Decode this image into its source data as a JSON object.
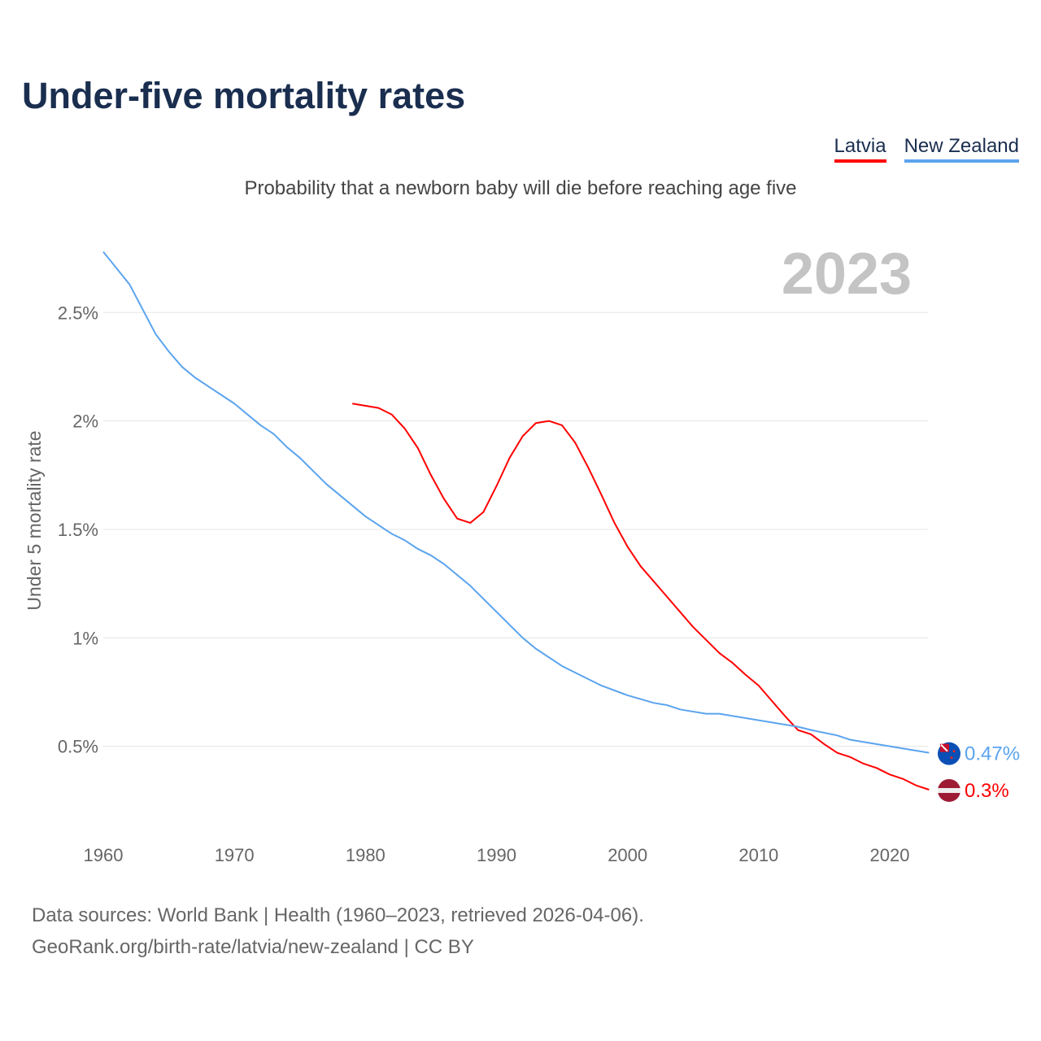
{
  "chart_data": {
    "type": "line",
    "title": "Under-five mortality rates",
    "subtitle": "Probability that a newborn baby will die before reaching age five",
    "ylabel": "Under 5 mortality rate",
    "xlabel": "",
    "year_label": "2023",
    "xlim": [
      1960,
      2023
    ],
    "ylim": [
      0,
      2.8
    ],
    "grid": true,
    "legend_position": "top-right",
    "x_ticks": [
      1960,
      1970,
      1980,
      1990,
      2000,
      2010,
      2020
    ],
    "x_tick_labels": [
      "1960",
      "1970",
      "1980",
      "1990",
      "2000",
      "2010",
      "2020"
    ],
    "y_ticks": [
      0.5,
      1,
      1.5,
      2,
      2.5
    ],
    "y_tick_labels": [
      "0.5%",
      "1%",
      "1.5%",
      "2%",
      "2.5%"
    ],
    "series": [
      {
        "name": "Latvia",
        "color": "#ff0000",
        "end_label": "0.3%",
        "x": [
          1979,
          1981,
          1982,
          1983,
          1984,
          1985,
          1986,
          1987,
          1988,
          1989,
          1990,
          1991,
          1992,
          1993,
          1994,
          1995,
          1996,
          1997,
          1998,
          1999,
          2000,
          2001,
          2002,
          2003,
          2004,
          2005,
          2006,
          2007,
          2008,
          2009,
          2010,
          2011,
          2012,
          2013,
          2014,
          2015,
          2016,
          2017,
          2018,
          2019,
          2020,
          2021,
          2022,
          2023
        ],
        "values": [
          2.08,
          2.06,
          2.03,
          1.965,
          1.875,
          1.75,
          1.64,
          1.55,
          1.53,
          1.58,
          1.7,
          1.83,
          1.93,
          1.99,
          2.0,
          1.98,
          1.9,
          1.785,
          1.66,
          1.53,
          1.42,
          1.33,
          1.26,
          1.19,
          1.12,
          1.05,
          0.99,
          0.93,
          0.885,
          0.83,
          0.78,
          0.71,
          0.64,
          0.575,
          0.555,
          0.51,
          0.47,
          0.45,
          0.42,
          0.4,
          0.37,
          0.35,
          0.32,
          0.3
        ]
      },
      {
        "name": "New Zealand",
        "color": "#5ba4ee",
        "end_label": "0.47%",
        "x": [
          1960,
          1962,
          1964,
          1965,
          1966,
          1967,
          1970,
          1972,
          1973,
          1974,
          1975,
          1977,
          1980,
          1982,
          1983,
          1984,
          1985,
          1986,
          1988,
          1990,
          1992,
          1993,
          1995,
          1998,
          2000,
          2002,
          2003,
          2004,
          2006,
          2007,
          2010,
          2013,
          2014,
          2016,
          2017,
          2020,
          2023
        ],
        "values": [
          2.78,
          2.63,
          2.4,
          2.32,
          2.25,
          2.2,
          2.08,
          1.98,
          1.94,
          1.88,
          1.83,
          1.71,
          1.56,
          1.48,
          1.45,
          1.41,
          1.38,
          1.34,
          1.24,
          1.12,
          1.0,
          0.95,
          0.87,
          0.78,
          0.735,
          0.7,
          0.69,
          0.67,
          0.65,
          0.65,
          0.62,
          0.59,
          0.575,
          0.55,
          0.53,
          0.5,
          0.47
        ]
      }
    ],
    "source_line1": "Data sources: World Bank | Health (1960–2023, retrieved 2026-04-06).",
    "source_line2": "GeoRank.org/birth-rate/latvia/new-zealand | CC BY"
  }
}
